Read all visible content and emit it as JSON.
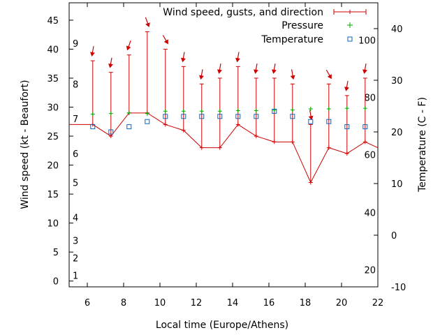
{
  "chart_data": {
    "type": "line",
    "xlabel": "Local time (Europe/Athens)",
    "ylabel_left": "Wind speed (kt - Beaufort)",
    "ylabel_right": "Temperature (C - F)",
    "xlim": [
      5,
      22
    ],
    "ylim_left": [
      -1,
      48
    ],
    "ylim_right": [
      -10,
      45
    ],
    "x_ticks": [
      6,
      8,
      10,
      12,
      14,
      16,
      18,
      20,
      22
    ],
    "y_ticks_left": [
      0,
      5,
      10,
      15,
      20,
      25,
      30,
      35,
      40,
      45
    ],
    "y_ticks_right": [
      -10,
      0,
      10,
      20,
      30,
      40
    ],
    "beaufort_labels": [
      {
        "label": "1",
        "kt": 1
      },
      {
        "label": "2",
        "kt": 4
      },
      {
        "label": "3",
        "kt": 7
      },
      {
        "label": "4",
        "kt": 11
      },
      {
        "label": "5",
        "kt": 17
      },
      {
        "label": "6",
        "kt": 22
      },
      {
        "label": "7",
        "kt": 28
      },
      {
        "label": "8",
        "kt": 34
      },
      {
        "label": "9",
        "kt": 41
      }
    ],
    "fahrenheit_labels": [
      {
        "label": "20",
        "celsius": -6.7
      },
      {
        "label": "40",
        "celsius": 4.4
      },
      {
        "label": "60",
        "celsius": 15.6
      },
      {
        "label": "80",
        "celsius": 26.7
      },
      {
        "label": "100",
        "celsius": 37.8
      }
    ],
    "legend": [
      "Wind speed, gusts, and direction",
      "Pressure",
      "Temperature"
    ],
    "legend_position": "top-right",
    "colors": {
      "wind": "#cc0000",
      "pressure": "#00aa00",
      "temperature": "#0066cc"
    },
    "wind": {
      "x": [
        5.0,
        6.3,
        7.3,
        8.3,
        9.3,
        10.3,
        11.3,
        12.3,
        13.3,
        14.3,
        15.3,
        16.3,
        17.3,
        18.3,
        19.3,
        20.3,
        21.3,
        22.0
      ],
      "speed": [
        27,
        27,
        25,
        29,
        29,
        27,
        26,
        23,
        23,
        27,
        25,
        24,
        24,
        17,
        23,
        22,
        24,
        23
      ],
      "gust": [
        null,
        38,
        36,
        39,
        43,
        40,
        37,
        34,
        35,
        37,
        35,
        35,
        34,
        27,
        34,
        32,
        35,
        null
      ],
      "direction_deg": [
        null,
        10,
        10,
        20,
        340,
        330,
        10,
        10,
        10,
        10,
        10,
        10,
        350,
        350,
        330,
        10,
        10,
        null
      ]
    },
    "pressure": {
      "x": [
        6.3,
        7.3,
        8.3,
        9.3,
        10.3,
        11.3,
        12.3,
        13.3,
        14.3,
        15.3,
        16.3,
        17.3,
        18.3,
        19.3,
        20.3,
        21.3
      ],
      "values": [
        28.8,
        28.9,
        29.0,
        28.9,
        29.3,
        29.3,
        29.3,
        29.3,
        29.4,
        29.4,
        29.5,
        29.5,
        29.7,
        29.7,
        29.8,
        29.8
      ]
    },
    "temperature": {
      "x": [
        6.3,
        7.3,
        8.3,
        9.3,
        10.3,
        11.3,
        12.3,
        13.3,
        14.3,
        15.3,
        16.3,
        17.3,
        18.3,
        19.3,
        20.3,
        21.3
      ],
      "celsius": [
        21.0,
        20.0,
        21.0,
        22.0,
        23.0,
        23.0,
        23.0,
        23.0,
        23.0,
        23.0,
        24.0,
        23.0,
        22.0,
        22.0,
        21.0,
        21.0
      ]
    }
  }
}
